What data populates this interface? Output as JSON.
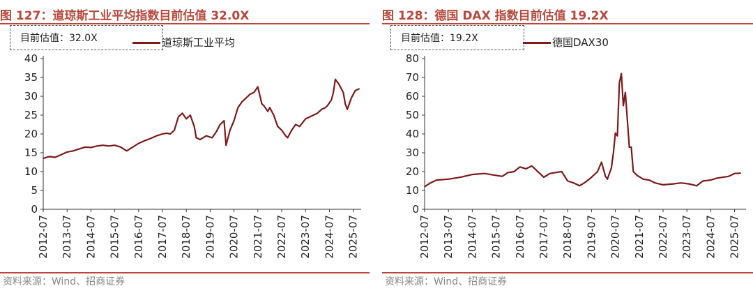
{
  "panels": [
    {
      "title": "图 127：道琼斯工业平均指数目前估值 32.0X",
      "callout": "目前估值：32.0X",
      "source": "资料来源：Wind、招商证券"
    },
    {
      "title": "图 128：德国 DAX 指数目前估值 19.2X",
      "callout": "目前估值：19.2X",
      "source": "资料来源：Wind、招商证券"
    }
  ],
  "chart_data": [
    {
      "type": "line",
      "title": "",
      "xlabel": "",
      "ylabel": "",
      "ylim": [
        0,
        40
      ],
      "yticks": [
        "0",
        "5",
        "10",
        "15",
        "20",
        "25",
        "30",
        "35",
        "40"
      ],
      "xticks": [
        "2012-07",
        "2013-07",
        "2014-07",
        "2015-07",
        "2016-07",
        "2017-07",
        "2018-07",
        "2019-07",
        "2020-07",
        "2021-07",
        "2022-07",
        "2023-07",
        "2024-07",
        "2025-07"
      ],
      "grid": false,
      "legend_position": "top-center",
      "series": [
        {
          "name": "道琼斯工业平均",
          "color": "#7b1a1a",
          "x": [
            "2012-07",
            "2012-10",
            "2013-01",
            "2013-04",
            "2013-07",
            "2013-10",
            "2014-01",
            "2014-04",
            "2014-07",
            "2014-10",
            "2015-01",
            "2015-04",
            "2015-07",
            "2015-10",
            "2016-01",
            "2016-04",
            "2016-07",
            "2016-10",
            "2017-01",
            "2017-04",
            "2017-07",
            "2017-09",
            "2017-11",
            "2018-01",
            "2018-03",
            "2018-05",
            "2018-07",
            "2018-09",
            "2018-11",
            "2018-12",
            "2019-02",
            "2019-05",
            "2019-08",
            "2019-10",
            "2019-12",
            "2020-02",
            "2020-03",
            "2020-05",
            "2020-07",
            "2020-09",
            "2020-11",
            "2021-01",
            "2021-03",
            "2021-05",
            "2021-07",
            "2021-09",
            "2021-10",
            "2021-12",
            "2022-01",
            "2022-03",
            "2022-05",
            "2022-07",
            "2022-09",
            "2022-10",
            "2022-12",
            "2023-02",
            "2023-04",
            "2023-07",
            "2023-09",
            "2023-11",
            "2024-01",
            "2024-03",
            "2024-05",
            "2024-06",
            "2024-08",
            "2024-09",
            "2024-10",
            "2024-12",
            "2025-02",
            "2025-03",
            "2025-04",
            "2025-06",
            "2025-08",
            "2025-10"
          ],
          "values": [
            13.5,
            14.0,
            13.8,
            14.5,
            15.2,
            15.5,
            16.0,
            16.5,
            16.4,
            16.8,
            17.0,
            16.8,
            17.0,
            16.5,
            15.5,
            16.5,
            17.5,
            18.2,
            18.8,
            19.5,
            20.0,
            20.2,
            20.0,
            21.0,
            24.5,
            25.5,
            24.0,
            25.0,
            22.0,
            19.0,
            18.5,
            19.5,
            19.0,
            20.5,
            22.5,
            23.5,
            17.0,
            21.0,
            23.5,
            27.0,
            28.5,
            29.5,
            30.5,
            31.0,
            32.5,
            28.0,
            27.5,
            26.0,
            27.0,
            25.0,
            22.0,
            21.0,
            19.5,
            19.0,
            21.0,
            22.5,
            22.0,
            24.0,
            24.5,
            25.0,
            25.5,
            26.5,
            27.0,
            27.5,
            29.0,
            31.0,
            34.5,
            33.0,
            31.0,
            28.0,
            26.5,
            29.5,
            31.5,
            32.0
          ]
        }
      ]
    },
    {
      "type": "line",
      "title": "",
      "xlabel": "",
      "ylabel": "",
      "ylim": [
        0,
        80
      ],
      "yticks": [
        "0",
        "10",
        "20",
        "30",
        "40",
        "50",
        "60",
        "70",
        "80"
      ],
      "xticks": [
        "2012-07",
        "2013-07",
        "2014-07",
        "2015-07",
        "2016-07",
        "2017-07",
        "2018-07",
        "2019-07",
        "2020-07",
        "2021-07",
        "2022-07",
        "2023-07",
        "2024-07",
        "2025-07"
      ],
      "grid": false,
      "legend_position": "top-center",
      "series": [
        {
          "name": "德国DAX30",
          "color": "#7b1a1a",
          "x": [
            "2012-07",
            "2012-10",
            "2013-01",
            "2013-07",
            "2014-01",
            "2014-07",
            "2015-01",
            "2015-04",
            "2015-07",
            "2015-10",
            "2016-01",
            "2016-04",
            "2016-07",
            "2016-10",
            "2017-01",
            "2017-07",
            "2017-10",
            "2018-01",
            "2018-04",
            "2018-07",
            "2018-10",
            "2019-01",
            "2019-04",
            "2019-07",
            "2019-10",
            "2019-12",
            "2020-02",
            "2020-03",
            "2020-05",
            "2020-06",
            "2020-07",
            "2020-08",
            "2020-09",
            "2020-10",
            "2020-11",
            "2020-12",
            "2021-01",
            "2021-02",
            "2021-03",
            "2021-04",
            "2021-06",
            "2021-09",
            "2021-12",
            "2022-03",
            "2022-07",
            "2022-12",
            "2023-04",
            "2023-08",
            "2023-12",
            "2024-03",
            "2024-07",
            "2024-10",
            "2025-01",
            "2025-04",
            "2025-07",
            "2025-10"
          ],
          "values": [
            12.0,
            14.0,
            15.5,
            16.0,
            17.0,
            18.5,
            19.0,
            18.5,
            18.0,
            17.5,
            19.5,
            20.0,
            22.5,
            21.5,
            23.0,
            17.0,
            19.0,
            19.5,
            20.0,
            15.0,
            14.0,
            12.5,
            14.5,
            17.0,
            20.0,
            25.0,
            17.5,
            16.0,
            22.0,
            30.0,
            40.5,
            39.0,
            67.0,
            72.0,
            55.0,
            62.0,
            48.0,
            33.0,
            33.0,
            20.0,
            18.0,
            16.0,
            15.5,
            14.0,
            13.0,
            13.5,
            14.0,
            13.5,
            12.5,
            15.0,
            15.5,
            16.5,
            17.0,
            17.5,
            19.0,
            19.2
          ]
        }
      ]
    }
  ]
}
